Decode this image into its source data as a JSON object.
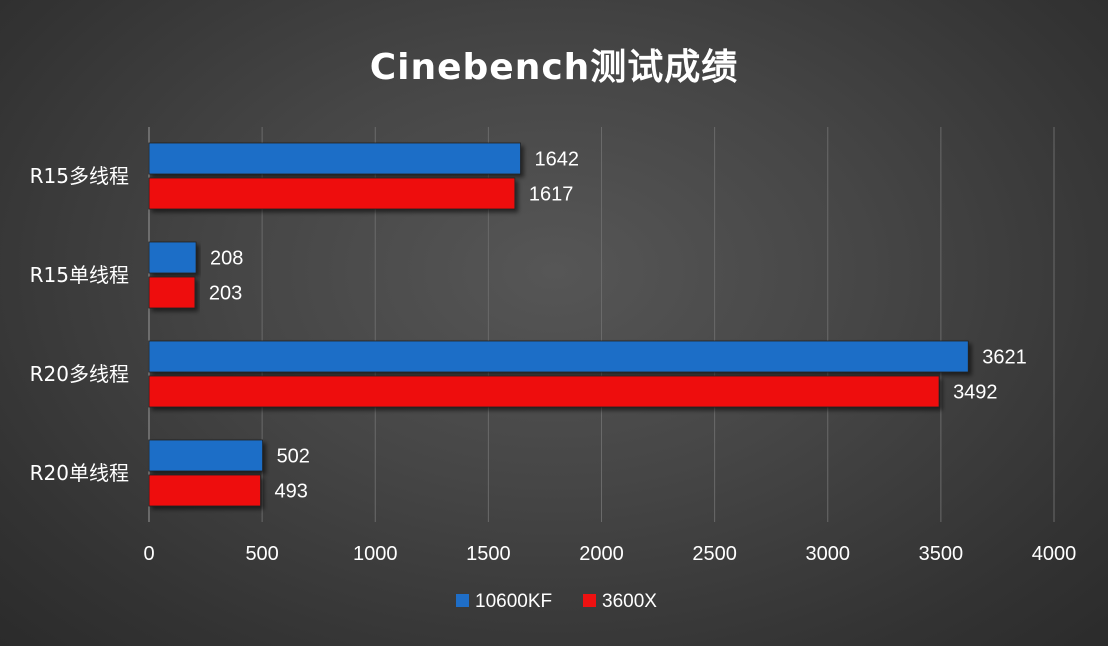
{
  "chart_data": {
    "type": "bar",
    "orientation": "horizontal",
    "title": "Cinebench测试成绩",
    "categories": [
      "R15多线程",
      "R15单线程",
      "R20多线程",
      "R20单线程"
    ],
    "series": [
      {
        "name": "10600KF",
        "color": "#1f6ec7",
        "values": [
          1642,
          208,
          3621,
          502
        ]
      },
      {
        "name": "3600X",
        "color": "#ee1111",
        "values": [
          1617,
          203,
          3492,
          493
        ]
      }
    ],
    "xlim": [
      0,
      4000
    ],
    "xticks": [
      "0",
      "500",
      "1000",
      "1500",
      "2000",
      "2500",
      "3000",
      "3500",
      "4000"
    ],
    "grid": "vertical",
    "legend": "bottom-center",
    "data_labels": true
  }
}
